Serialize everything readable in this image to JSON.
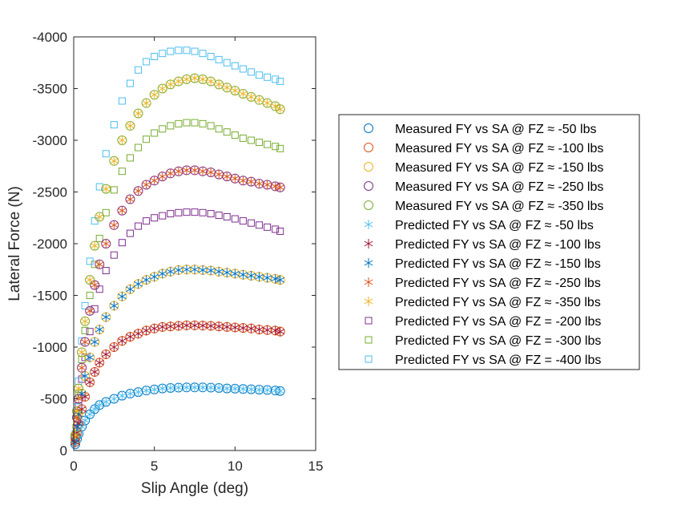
{
  "chart_data": {
    "type": "scatter",
    "title": "",
    "xlabel": "Slip Angle (deg)",
    "ylabel": "Lateral Force (N)",
    "xlim": [
      0,
      15
    ],
    "ylim": [
      0,
      -4000
    ],
    "y_axis_reversed": true,
    "xticks": [
      "0",
      "5",
      "10",
      "15"
    ],
    "yticks": [
      "0",
      "-500",
      "-1000",
      "-1500",
      "-2000",
      "-2500",
      "-3000",
      "-3500",
      "-4000"
    ],
    "grid": false,
    "legend_position": "right",
    "x": [
      0.1,
      0.2,
      0.3,
      0.5,
      0.7,
      1.0,
      1.3,
      1.6,
      2.0,
      2.5,
      3.0,
      3.5,
      4.0,
      4.5,
      5.0,
      5.5,
      6.0,
      6.5,
      7.0,
      7.5,
      8.0,
      8.5,
      9.0,
      9.5,
      10.0,
      10.5,
      11.0,
      11.5,
      12.0,
      12.5,
      12.8
    ],
    "series": [
      {
        "name": "Measured FY vs SA @ FZ ≈ -50 lbs",
        "marker": "circle",
        "color": "#0072BD",
        "values": [
          -60,
          -110,
          -160,
          -230,
          -290,
          -350,
          -400,
          -440,
          -470,
          -500,
          -530,
          -550,
          -565,
          -580,
          -590,
          -600,
          -605,
          -608,
          -610,
          -610,
          -610,
          -608,
          -605,
          -600,
          -598,
          -595,
          -592,
          -588,
          -585,
          -580,
          -575
        ]
      },
      {
        "name": "Measured FY vs SA @ FZ ≈ -100 lbs",
        "marker": "circle",
        "color": "#D95319",
        "values": [
          -80,
          -170,
          -260,
          -400,
          -520,
          -660,
          -760,
          -850,
          -930,
          -1000,
          -1060,
          -1100,
          -1130,
          -1160,
          -1180,
          -1195,
          -1200,
          -1205,
          -1210,
          -1210,
          -1208,
          -1205,
          -1200,
          -1195,
          -1190,
          -1185,
          -1180,
          -1170,
          -1165,
          -1160,
          -1150
        ]
      },
      {
        "name": "Measured FY vs SA @ FZ ≈ -150 lbs",
        "marker": "circle",
        "color": "#EDB120",
        "values": [
          -100,
          -230,
          -350,
          -550,
          -720,
          -900,
          -1050,
          -1170,
          -1290,
          -1400,
          -1490,
          -1560,
          -1610,
          -1650,
          -1680,
          -1710,
          -1730,
          -1745,
          -1750,
          -1750,
          -1745,
          -1740,
          -1730,
          -1720,
          -1710,
          -1700,
          -1690,
          -1680,
          -1670,
          -1660,
          -1650
        ]
      },
      {
        "name": "Measured FY vs SA @ FZ ≈ -250 lbs",
        "marker": "circle",
        "color": "#7E2F8E",
        "values": [
          -130,
          -320,
          -500,
          -800,
          -1050,
          -1350,
          -1600,
          -1800,
          -2000,
          -2180,
          -2320,
          -2430,
          -2510,
          -2570,
          -2610,
          -2650,
          -2680,
          -2700,
          -2710,
          -2710,
          -2700,
          -2690,
          -2670,
          -2650,
          -2630,
          -2610,
          -2600,
          -2580,
          -2570,
          -2555,
          -2545
        ]
      },
      {
        "name": "Measured FY vs SA @ FZ ≈ -350 lbs",
        "marker": "circle",
        "color": "#77AC30",
        "values": [
          -150,
          -380,
          -600,
          -950,
          -1250,
          -1650,
          -1980,
          -2260,
          -2530,
          -2800,
          -3000,
          -3140,
          -3260,
          -3360,
          -3440,
          -3500,
          -3540,
          -3570,
          -3590,
          -3600,
          -3590,
          -3570,
          -3540,
          -3510,
          -3480,
          -3450,
          -3420,
          -3390,
          -3360,
          -3330,
          -3300
        ]
      },
      {
        "name": "Predicted FY vs SA @ FZ ≈ -50 lbs",
        "marker": "asterisk",
        "color": "#4DBEEE",
        "values": [
          -60,
          -110,
          -160,
          -230,
          -290,
          -350,
          -400,
          -440,
          -470,
          -500,
          -530,
          -550,
          -565,
          -580,
          -590,
          -600,
          -605,
          -608,
          -610,
          -610,
          -610,
          -608,
          -605,
          -600,
          -598,
          -595,
          -592,
          -588,
          -585,
          -580,
          -575
        ]
      },
      {
        "name": "Predicted FY vs SA @ FZ ≈ -100 lbs",
        "marker": "asterisk",
        "color": "#A2142F",
        "values": [
          -80,
          -170,
          -260,
          -400,
          -520,
          -660,
          -760,
          -850,
          -930,
          -1000,
          -1060,
          -1100,
          -1130,
          -1160,
          -1180,
          -1195,
          -1200,
          -1205,
          -1210,
          -1210,
          -1208,
          -1205,
          -1200,
          -1195,
          -1190,
          -1185,
          -1180,
          -1170,
          -1165,
          -1160,
          -1150
        ]
      },
      {
        "name": "Predicted FY vs SA @ FZ ≈ -150 lbs",
        "marker": "asterisk",
        "color": "#0072BD",
        "values": [
          -100,
          -230,
          -350,
          -550,
          -720,
          -900,
          -1050,
          -1170,
          -1290,
          -1400,
          -1490,
          -1560,
          -1610,
          -1650,
          -1680,
          -1710,
          -1730,
          -1745,
          -1750,
          -1750,
          -1745,
          -1740,
          -1730,
          -1720,
          -1710,
          -1700,
          -1690,
          -1680,
          -1670,
          -1660,
          -1650
        ]
      },
      {
        "name": "Predicted FY vs SA @ FZ ≈ -250 lbs",
        "marker": "asterisk",
        "color": "#D95319",
        "values": [
          -130,
          -320,
          -500,
          -800,
          -1050,
          -1350,
          -1600,
          -1800,
          -2000,
          -2180,
          -2320,
          -2430,
          -2510,
          -2570,
          -2610,
          -2650,
          -2680,
          -2700,
          -2710,
          -2710,
          -2700,
          -2690,
          -2670,
          -2650,
          -2630,
          -2610,
          -2600,
          -2580,
          -2570,
          -2555,
          -2545
        ]
      },
      {
        "name": "Predicted FY vs SA @ FZ ≈ -350 lbs",
        "marker": "asterisk",
        "color": "#EDB120",
        "values": [
          -150,
          -380,
          -600,
          -950,
          -1250,
          -1650,
          -1980,
          -2260,
          -2530,
          -2800,
          -3000,
          -3140,
          -3260,
          -3360,
          -3440,
          -3500,
          -3540,
          -3570,
          -3590,
          -3600,
          -3590,
          -3570,
          -3540,
          -3510,
          -3480,
          -3450,
          -3420,
          -3390,
          -3360,
          -3330,
          -3300
        ]
      },
      {
        "name": "Predicted FY vs SA @ FZ = -200 lbs",
        "marker": "square",
        "color": "#7E2F8E",
        "values": [
          -120,
          -280,
          -430,
          -690,
          -900,
          -1150,
          -1370,
          -1560,
          -1740,
          -1890,
          -2010,
          -2100,
          -2170,
          -2220,
          -2250,
          -2270,
          -2290,
          -2300,
          -2305,
          -2305,
          -2300,
          -2290,
          -2275,
          -2260,
          -2240,
          -2220,
          -2200,
          -2180,
          -2160,
          -2140,
          -2120
        ]
      },
      {
        "name": "Predicted FY vs SA @ FZ = -300 lbs",
        "marker": "square",
        "color": "#77AC30",
        "values": [
          -140,
          -350,
          -550,
          -880,
          -1160,
          -1500,
          -1800,
          -2050,
          -2300,
          -2520,
          -2700,
          -2830,
          -2930,
          -3010,
          -3070,
          -3110,
          -3140,
          -3160,
          -3170,
          -3170,
          -3160,
          -3140,
          -3110,
          -3080,
          -3050,
          -3020,
          -3000,
          -2980,
          -2960,
          -2940,
          -2920
        ]
      },
      {
        "name": "Predicted FY vs SA @ FZ = -400 lbs",
        "marker": "square",
        "color": "#4DBEEE",
        "values": [
          -160,
          -420,
          -670,
          -1060,
          -1400,
          -1830,
          -2220,
          -2550,
          -2870,
          -3150,
          -3380,
          -3550,
          -3680,
          -3760,
          -3810,
          -3840,
          -3860,
          -3870,
          -3870,
          -3860,
          -3840,
          -3810,
          -3780,
          -3750,
          -3720,
          -3690,
          -3660,
          -3630,
          -3610,
          -3590,
          -3570
        ]
      }
    ]
  }
}
